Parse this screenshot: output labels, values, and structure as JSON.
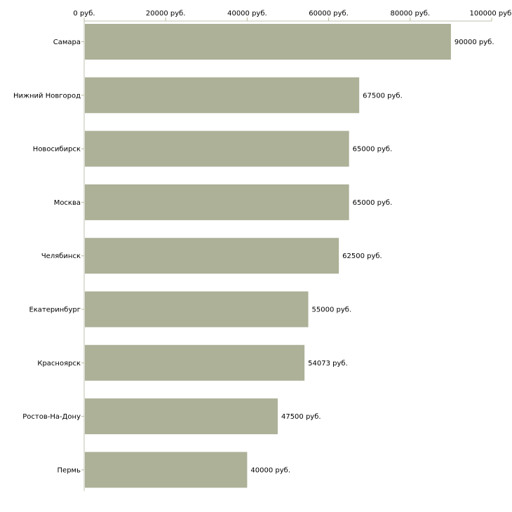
{
  "chart_data": {
    "type": "bar",
    "orientation": "horizontal",
    "title": "",
    "xlabel": "",
    "ylabel": "",
    "categories": [
      "Самара",
      "Нижний Новгород",
      "Новосибирск",
      "Москва",
      "Челябинск",
      "Екатеринбург",
      "Красноярск",
      "Ростов-На-Дону",
      "Пермь"
    ],
    "values": [
      90000,
      67500,
      65000,
      65000,
      62500,
      55000,
      54073,
      47500,
      40000
    ],
    "value_labels": [
      "90000 руб.",
      "67500 руб.",
      "65000 руб.",
      "65000 руб.",
      "62500 руб.",
      "55000 руб.",
      "54073 руб.",
      "47500 руб.",
      "40000 руб."
    ],
    "xlim": [
      0,
      100000
    ],
    "x_ticks": [
      0,
      20000,
      40000,
      60000,
      80000,
      100000
    ],
    "x_tick_labels": [
      "0 руб.",
      "20000 руб.",
      "40000 руб.",
      "60000 руб.",
      "80000 руб.",
      "100000 руб."
    ],
    "x_axis_position": "top",
    "grid": false,
    "colors": {
      "bar": "#acb197",
      "axis": "#c0c0b0",
      "tick": "#b8bc9c"
    }
  }
}
